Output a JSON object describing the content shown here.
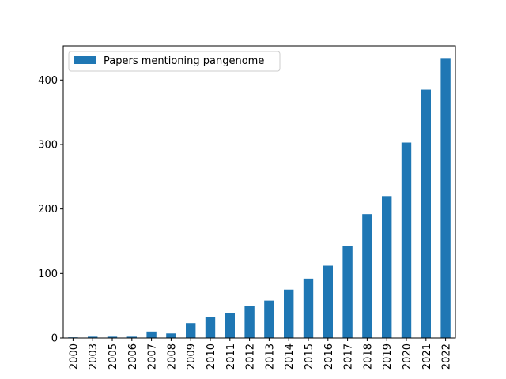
{
  "chart_data": {
    "type": "bar",
    "title": "",
    "xlabel": "",
    "ylabel": "",
    "categories": [
      "2000",
      "2003",
      "2005",
      "2006",
      "2007",
      "2008",
      "2009",
      "2010",
      "2011",
      "2012",
      "2013",
      "2014",
      "2015",
      "2016",
      "2017",
      "2018",
      "2019",
      "2020",
      "2021",
      "2022"
    ],
    "series": [
      {
        "name": "Papers mentioning pangenome",
        "values": [
          1,
          2,
          2,
          2,
          10,
          7,
          23,
          33,
          39,
          50,
          58,
          75,
          92,
          112,
          143,
          192,
          220,
          303,
          385,
          433
        ],
        "color": "#1f77b4"
      }
    ],
    "yticks": [
      0,
      100,
      200,
      300,
      400
    ],
    "ylim": [
      0,
      453
    ],
    "grid": false,
    "legend_position": "top-left"
  }
}
